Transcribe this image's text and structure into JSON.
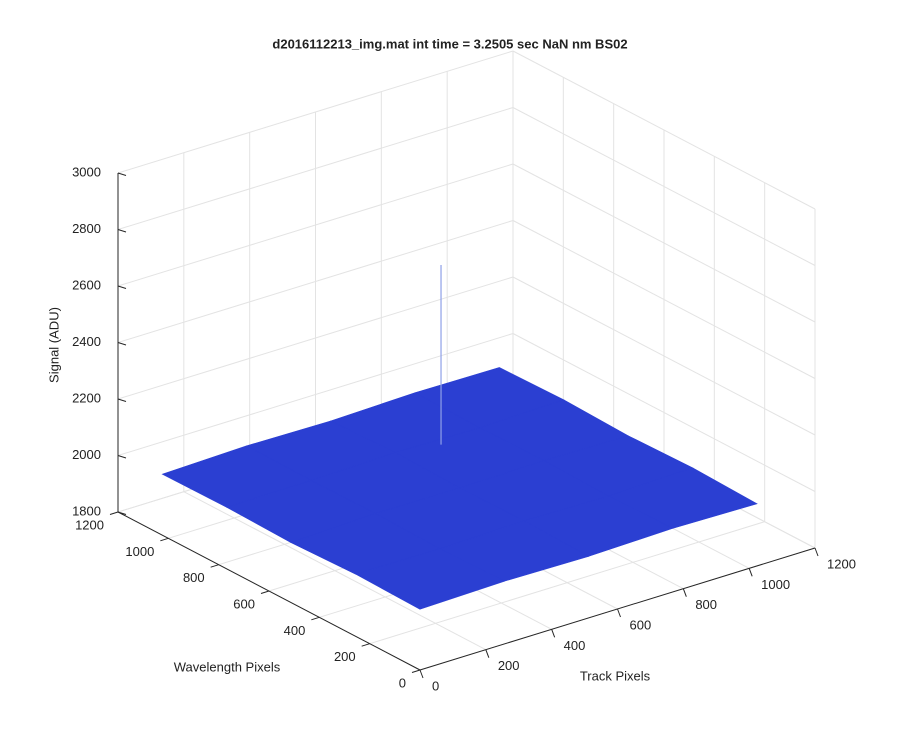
{
  "chart_data": {
    "type": "surface",
    "title": "d2016112213_img.mat int time = 3.2505 sec  NaN nm BS02",
    "xlabel": "Track Pixels",
    "ylabel": "Wavelength Pixels",
    "zlabel": "Signal (ADU)",
    "x": [
      0,
      256,
      512,
      768,
      1024
    ],
    "y": [
      0,
      256,
      512,
      768,
      1024
    ],
    "z": [
      [
        2015,
        2022,
        2018,
        2025,
        2020
      ],
      [
        2020,
        2017,
        2024,
        2019,
        2028
      ],
      [
        2012,
        2023,
        2021,
        2026,
        2022
      ],
      [
        2018,
        2021,
        2027,
        2023,
        2030
      ],
      [
        2016,
        2024,
        2020,
        2028,
        2025
      ]
    ],
    "peak": {
      "x": 635,
      "y": 747,
      "z": 2657
    },
    "color": "#2b3fd2",
    "xlim": [
      0,
      1200
    ],
    "ylim": [
      0,
      1200
    ],
    "zlim": [
      1800,
      3000
    ],
    "xticks": [
      0,
      200,
      400,
      600,
      800,
      1000,
      1200
    ],
    "yticks": [
      0,
      200,
      400,
      600,
      800,
      1000,
      1200
    ],
    "zticks": [
      1800,
      2000,
      2200,
      2400,
      2600,
      2800,
      3000
    ],
    "grid": true
  }
}
